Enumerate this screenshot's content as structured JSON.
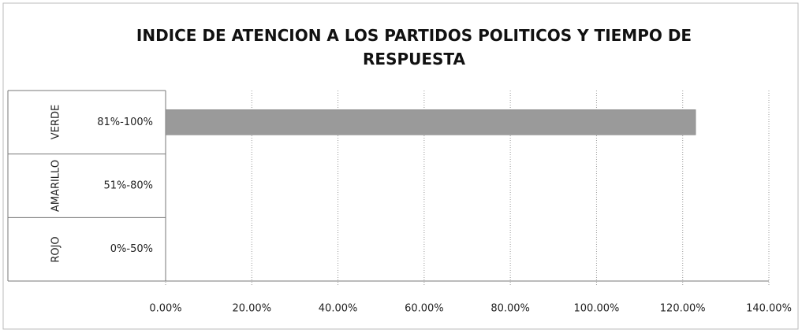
{
  "chart_data": {
    "type": "bar",
    "title": "INDICE DE ATENCION A LOS PARTIDOS POLITICOS Y TIEMPO DE RESPUESTA",
    "category_groups": [
      "VERDE",
      "AMARILLO",
      "ROJO"
    ],
    "categories": [
      "81%-100%",
      "51%-80%",
      "0%-50%"
    ],
    "values": [
      123,
      null,
      null
    ],
    "color": "#9a9a9a",
    "xlim": [
      0,
      140
    ],
    "xticks": [
      {
        "value": 0,
        "label": "0.00%"
      },
      {
        "value": 20,
        "label": "20.00%"
      },
      {
        "value": 40,
        "label": "40.00%"
      },
      {
        "value": 60,
        "label": "60.00%"
      },
      {
        "value": 80,
        "label": "80.00%"
      },
      {
        "value": 100,
        "label": "100.00%"
      },
      {
        "value": 120,
        "label": "120.00%"
      },
      {
        "value": 140,
        "label": "140.00%"
      }
    ],
    "grid": true
  }
}
